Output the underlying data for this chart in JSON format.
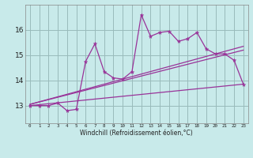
{
  "xlabel": "Windchill (Refroidissement éolien,°C)",
  "ylabel": "",
  "bg_color": "#c8eaea",
  "grid_color": "#99bbbb",
  "line_color": "#993399",
  "x_ticks": [
    0,
    1,
    2,
    3,
    4,
    5,
    6,
    7,
    8,
    9,
    10,
    11,
    12,
    13,
    14,
    15,
    16,
    17,
    18,
    19,
    20,
    21,
    22,
    23
  ],
  "y_ticks": [
    13,
    14,
    15,
    16
  ],
  "xlim": [
    -0.5,
    23.5
  ],
  "ylim": [
    12.3,
    17.0
  ],
  "data_x": [
    0,
    1,
    2,
    3,
    4,
    5,
    6,
    7,
    8,
    9,
    10,
    11,
    12,
    13,
    14,
    15,
    16,
    17,
    18,
    19,
    20,
    21,
    22,
    23
  ],
  "data_y": [
    13.0,
    13.0,
    13.0,
    13.1,
    12.8,
    12.85,
    14.75,
    15.45,
    14.35,
    14.1,
    14.05,
    14.35,
    16.6,
    15.75,
    15.9,
    15.95,
    15.55,
    15.65,
    15.9,
    15.25,
    15.05,
    15.05,
    14.8,
    13.85
  ],
  "line1_x": [
    0,
    23
  ],
  "line1_y": [
    13.0,
    13.85
  ],
  "line2_x": [
    0,
    23
  ],
  "line2_y": [
    13.05,
    15.2
  ],
  "line3_x": [
    0,
    23
  ],
  "line3_y": [
    13.05,
    15.35
  ]
}
